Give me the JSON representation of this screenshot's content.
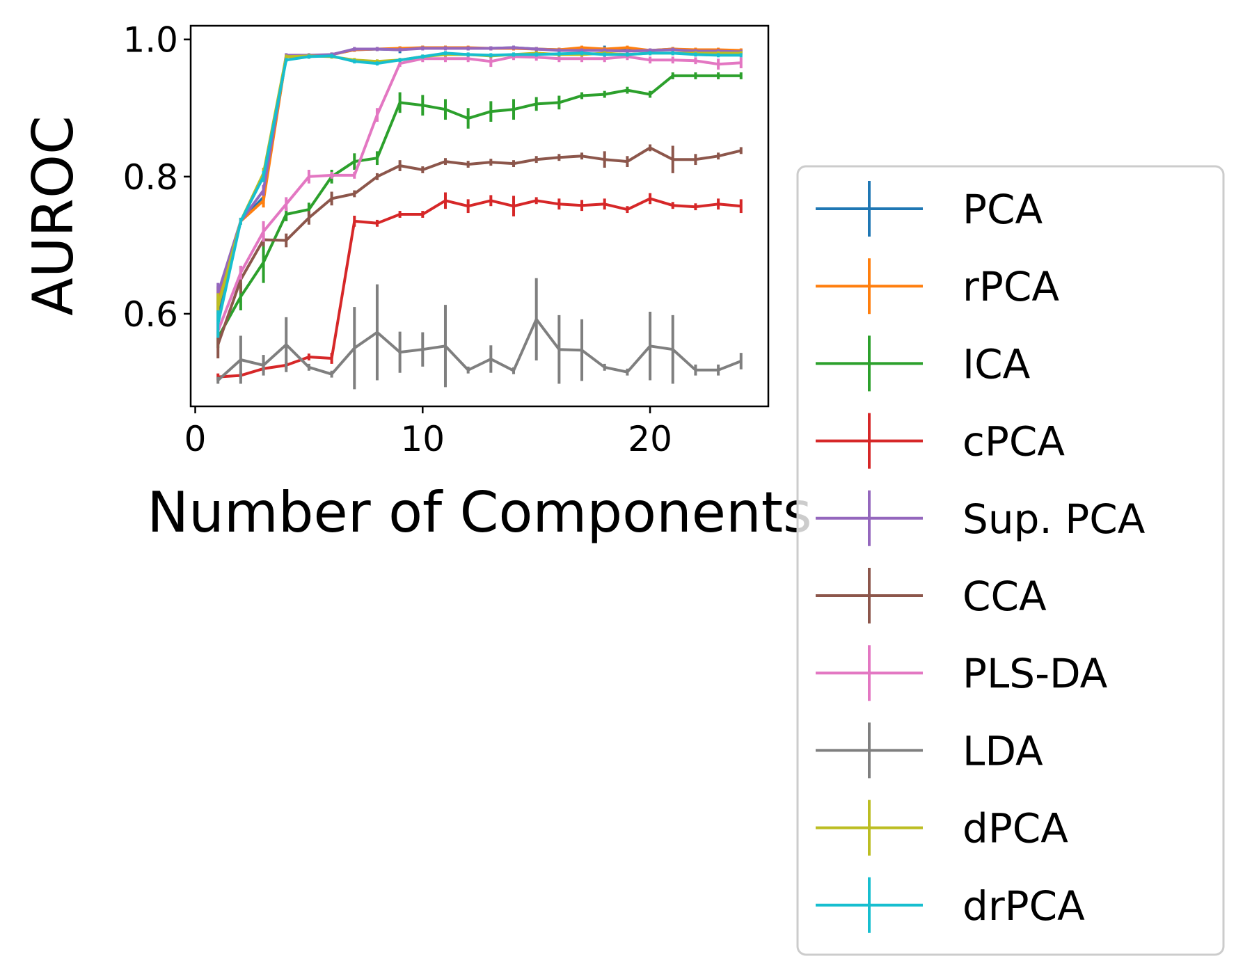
{
  "chart_data": {
    "type": "line",
    "xlabel": "Number of Components",
    "ylabel": "AUROC",
    "xlim": [
      -0.2,
      25.2
    ],
    "ylim": [
      0.465,
      1.02
    ],
    "xticks": [
      0,
      10,
      20
    ],
    "xtick_labels": [
      "0",
      "10",
      "20"
    ],
    "yticks": [
      0.6,
      0.8,
      1.0
    ],
    "ytick_labels": [
      "0.6",
      "0.8",
      "1.0"
    ],
    "grid": false,
    "legend_position": "lower-right, outside plot",
    "x": [
      1,
      2,
      3,
      4,
      5,
      6,
      7,
      8,
      9,
      10,
      11,
      12,
      13,
      14,
      15,
      16,
      17,
      18,
      19,
      20,
      21,
      22,
      23,
      24
    ],
    "series": [
      {
        "name": "PCA",
        "color": "#1f77b4",
        "values": [
          0.6,
          0.735,
          0.77,
          0.975,
          0.975,
          0.978,
          0.985,
          0.986,
          0.985,
          0.988,
          0.988,
          0.987,
          0.987,
          0.988,
          0.986,
          0.985,
          0.987,
          0.986,
          0.985,
          0.984,
          0.986,
          0.984,
          0.983,
          0.983
        ],
        "errors": [
          0.02,
          0.005,
          0.01,
          0.003,
          0.003,
          0.003,
          0.003,
          0.003,
          0.005,
          0.003,
          0.003,
          0.003,
          0.003,
          0.003,
          0.003,
          0.003,
          0.003,
          0.005,
          0.003,
          0.003,
          0.003,
          0.003,
          0.003,
          0.003
        ]
      },
      {
        "name": "rPCA",
        "color": "#ff7f0e",
        "values": [
          0.62,
          0.735,
          0.765,
          0.975,
          0.975,
          0.978,
          0.985,
          0.986,
          0.987,
          0.988,
          0.988,
          0.988,
          0.987,
          0.987,
          0.986,
          0.985,
          0.988,
          0.986,
          0.988,
          0.984,
          0.986,
          0.985,
          0.985,
          0.984
        ],
        "errors": [
          0.02,
          0.005,
          0.01,
          0.003,
          0.003,
          0.003,
          0.003,
          0.003,
          0.003,
          0.003,
          0.003,
          0.003,
          0.003,
          0.003,
          0.003,
          0.003,
          0.003,
          0.003,
          0.003,
          0.003,
          0.003,
          0.003,
          0.003,
          0.003
        ]
      },
      {
        "name": "ICA",
        "color": "#2ca02c",
        "values": [
          0.565,
          0.625,
          0.675,
          0.745,
          0.752,
          0.8,
          0.822,
          0.827,
          0.908,
          0.904,
          0.898,
          0.885,
          0.895,
          0.898,
          0.906,
          0.908,
          0.918,
          0.92,
          0.926,
          0.92,
          0.947,
          0.947,
          0.947,
          0.947
        ],
        "errors": [
          0.015,
          0.02,
          0.03,
          0.01,
          0.01,
          0.01,
          0.012,
          0.01,
          0.015,
          0.015,
          0.015,
          0.015,
          0.015,
          0.015,
          0.01,
          0.01,
          0.005,
          0.005,
          0.005,
          0.005,
          0.005,
          0.005,
          0.005,
          0.005
        ]
      },
      {
        "name": "cPCA",
        "color": "#d62728",
        "values": [
          0.508,
          0.51,
          0.52,
          0.525,
          0.537,
          0.535,
          0.735,
          0.732,
          0.745,
          0.745,
          0.765,
          0.757,
          0.765,
          0.757,
          0.765,
          0.76,
          0.758,
          0.76,
          0.752,
          0.768,
          0.758,
          0.756,
          0.76,
          0.757
        ],
        "errors": [
          0.005,
          0.005,
          0.005,
          0.005,
          0.005,
          0.008,
          0.008,
          0.005,
          0.005,
          0.005,
          0.012,
          0.01,
          0.008,
          0.015,
          0.005,
          0.008,
          0.008,
          0.008,
          0.005,
          0.008,
          0.005,
          0.005,
          0.008,
          0.01
        ]
      },
      {
        "name": "Sup. PCA",
        "color": "#9467bd",
        "values": [
          0.63,
          0.735,
          0.78,
          0.977,
          0.977,
          0.978,
          0.986,
          0.986,
          0.985,
          0.987,
          0.987,
          0.987,
          0.987,
          0.988,
          0.986,
          0.984,
          0.984,
          0.984,
          0.983,
          0.984,
          0.985,
          0.983,
          0.983,
          0.982
        ],
        "errors": [
          0.015,
          0.005,
          0.008,
          0.003,
          0.003,
          0.003,
          0.003,
          0.003,
          0.003,
          0.003,
          0.003,
          0.003,
          0.003,
          0.003,
          0.003,
          0.003,
          0.003,
          0.003,
          0.003,
          0.003,
          0.003,
          0.003,
          0.003,
          0.003
        ]
      },
      {
        "name": "CCA",
        "color": "#8c564b",
        "values": [
          0.555,
          0.65,
          0.708,
          0.707,
          0.74,
          0.768,
          0.775,
          0.8,
          0.816,
          0.81,
          0.822,
          0.818,
          0.821,
          0.819,
          0.825,
          0.828,
          0.83,
          0.825,
          0.822,
          0.842,
          0.825,
          0.825,
          0.83,
          0.838
        ],
        "errors": [
          0.02,
          0.02,
          0.01,
          0.01,
          0.01,
          0.01,
          0.005,
          0.005,
          0.008,
          0.005,
          0.005,
          0.005,
          0.005,
          0.005,
          0.005,
          0.005,
          0.005,
          0.012,
          0.008,
          0.005,
          0.02,
          0.008,
          0.005,
          0.005
        ]
      },
      {
        "name": "PLS-DA",
        "color": "#e377c2",
        "values": [
          0.575,
          0.66,
          0.72,
          0.76,
          0.8,
          0.802,
          0.802,
          0.89,
          0.965,
          0.972,
          0.972,
          0.972,
          0.968,
          0.975,
          0.974,
          0.972,
          0.972,
          0.972,
          0.975,
          0.97,
          0.97,
          0.969,
          0.964,
          0.966
        ],
        "errors": [
          0.01,
          0.01,
          0.015,
          0.01,
          0.01,
          0.005,
          0.005,
          0.01,
          0.005,
          0.005,
          0.005,
          0.005,
          0.008,
          0.005,
          0.005,
          0.005,
          0.005,
          0.005,
          0.005,
          0.005,
          0.005,
          0.005,
          0.008,
          0.008
        ]
      },
      {
        "name": "LDA",
        "color": "#7f7f7f",
        "values": [
          0.503,
          0.533,
          0.525,
          0.555,
          0.522,
          0.512,
          0.55,
          0.573,
          0.544,
          0.548,
          0.553,
          0.518,
          0.534,
          0.517,
          0.592,
          0.548,
          0.547,
          0.522,
          0.515,
          0.553,
          0.548,
          0.518,
          0.518,
          0.531
        ],
        "errors": [
          0.005,
          0.035,
          0.015,
          0.04,
          0.005,
          0.005,
          0.06,
          0.07,
          0.03,
          0.025,
          0.06,
          0.005,
          0.02,
          0.005,
          0.06,
          0.05,
          0.045,
          0.005,
          0.005,
          0.05,
          0.05,
          0.008,
          0.008,
          0.012
        ]
      },
      {
        "name": "dPCA",
        "color": "#bcbd22",
        "values": [
          0.61,
          0.735,
          0.805,
          0.975,
          0.976,
          0.975,
          0.97,
          0.968,
          0.97,
          0.975,
          0.978,
          0.978,
          0.976,
          0.978,
          0.98,
          0.978,
          0.978,
          0.98,
          0.978,
          0.98,
          0.98,
          0.98,
          0.98,
          0.98
        ],
        "errors": [
          0.02,
          0.005,
          0.008,
          0.003,
          0.003,
          0.003,
          0.003,
          0.003,
          0.003,
          0.003,
          0.003,
          0.003,
          0.003,
          0.003,
          0.003,
          0.003,
          0.003,
          0.003,
          0.003,
          0.003,
          0.003,
          0.003,
          0.003,
          0.003
        ]
      },
      {
        "name": "drPCA",
        "color": "#17becf",
        "values": [
          0.585,
          0.735,
          0.8,
          0.97,
          0.975,
          0.976,
          0.968,
          0.965,
          0.97,
          0.975,
          0.98,
          0.978,
          0.977,
          0.978,
          0.978,
          0.979,
          0.98,
          0.978,
          0.978,
          0.98,
          0.98,
          0.978,
          0.977,
          0.977
        ],
        "errors": [
          0.02,
          0.005,
          0.008,
          0.003,
          0.003,
          0.003,
          0.003,
          0.003,
          0.003,
          0.003,
          0.003,
          0.003,
          0.003,
          0.003,
          0.003,
          0.003,
          0.003,
          0.003,
          0.003,
          0.003,
          0.003,
          0.003,
          0.003,
          0.003
        ]
      }
    ]
  }
}
